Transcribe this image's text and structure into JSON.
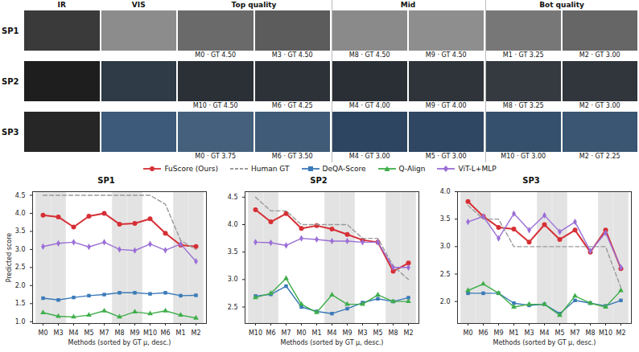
{
  "figure": {
    "column_heads": [
      "IR",
      "VIS",
      "Top quality",
      "Mid",
      "Bot quality"
    ],
    "rows": [
      {
        "label": "SP1",
        "captions": [
          "M0 · GT 4.50",
          "M3 · GT 4.50",
          "M8 · GT 4.50",
          "M9 · GT 4.50",
          "M1 · GT 3.25",
          "M2 · GT 3.00"
        ]
      },
      {
        "label": "SP2",
        "captions": [
          "M10 · GT 4.50",
          "M6 · GT 4.25",
          "M4 · GT 4.00",
          "M9 · GT 4.00",
          "M8 · GT 3.25",
          "M2 · GT 3.00"
        ]
      },
      {
        "label": "SP3",
        "captions": [
          "M0 · GT 3.75",
          "M6 · GT 3.50",
          "M4 · GT 3.00",
          "M5 · GT 3.00",
          "M10 · GT 3.00",
          "M2 · GT 2.25"
        ]
      }
    ]
  },
  "chart_data": [
    {
      "type": "line",
      "title": "SP1",
      "x_label": "Methods (sorted by GT μ, desc.)",
      "y_label": "Predicted score",
      "legend": "top",
      "grid": false,
      "categories": [
        "M0",
        "M3",
        "M4",
        "M5",
        "M7",
        "M8",
        "M9",
        "M10",
        "M6",
        "M1",
        "M2"
      ],
      "highlighted": [
        "M0",
        "M3",
        "M8",
        "M9",
        "M1",
        "M2"
      ],
      "ylim": [
        0.95,
        4.6
      ],
      "yticks": [
        {
          "value": 1,
          "label": "1.0"
        },
        1.5,
        {
          "value": 2,
          "label": "2.0"
        },
        2.5,
        {
          "value": 3,
          "label": "3.0"
        },
        3.5,
        {
          "value": 4,
          "label": "4.0"
        },
        4.5
      ],
      "series": [
        {
          "name": "FuScore (Ours)",
          "color": "#d62f35",
          "marker": "circle",
          "line_style": "solid",
          "values": [
            3.95,
            3.9,
            3.62,
            3.92,
            4.0,
            3.7,
            3.72,
            3.85,
            3.45,
            3.12,
            3.08
          ]
        },
        {
          "name": "Human GT",
          "color": "#9a9a9a",
          "marker": "none",
          "line_style": "dashed",
          "values": [
            4.5,
            4.5,
            4.5,
            4.5,
            4.5,
            4.5,
            4.5,
            4.5,
            4.25,
            3.25,
            3.0
          ]
        },
        {
          "name": "DeQA-Score",
          "color": "#3a7ab8",
          "marker": "square",
          "line_style": "solid",
          "values": [
            1.65,
            1.6,
            1.67,
            1.72,
            1.75,
            1.8,
            1.8,
            1.77,
            1.8,
            1.72,
            1.73
          ]
        },
        {
          "name": "Q-Align",
          "color": "#3fae49",
          "marker": "triangle",
          "line_style": "solid",
          "values": [
            1.25,
            1.15,
            1.13,
            1.18,
            1.3,
            1.13,
            1.27,
            1.22,
            1.3,
            1.18,
            1.1
          ]
        },
        {
          "name": "ViT-L+MLP",
          "color": "#9b6fd6",
          "marker": "diamond",
          "line_style": "solid",
          "values": [
            3.08,
            3.17,
            3.2,
            3.07,
            3.2,
            3.0,
            2.97,
            3.15,
            2.98,
            3.15,
            2.67
          ]
        }
      ]
    },
    {
      "type": "line",
      "title": "SP2",
      "x_label": "Methods (sorted by GT μ, desc.)",
      "legend": "top",
      "grid": false,
      "categories": [
        "M10",
        "M6",
        "M7",
        "M0",
        "M1",
        "M4",
        "M9",
        "M3",
        "M5",
        "M8",
        "M2"
      ],
      "highlighted": [
        "M10",
        "M6",
        "M4",
        "M9",
        "M8",
        "M2"
      ],
      "ylim": [
        2.2,
        4.6
      ],
      "yticks": [
        2.5,
        {
          "value": 3,
          "label": "3.0"
        },
        3.5,
        {
          "value": 4,
          "label": "4.0"
        },
        4.5
      ],
      "series": [
        {
          "name": "FuScore (Ours)",
          "color": "#d62f35",
          "marker": "circle",
          "line_style": "solid",
          "values": [
            4.27,
            4.05,
            4.2,
            3.93,
            3.98,
            3.92,
            3.82,
            3.72,
            3.68,
            3.15,
            3.3
          ]
        },
        {
          "name": "Human GT",
          "color": "#9a9a9a",
          "marker": "none",
          "line_style": "dashed",
          "values": [
            4.5,
            4.25,
            4.25,
            4.0,
            4.0,
            4.0,
            4.0,
            3.75,
            3.75,
            3.25,
            3.0
          ]
        },
        {
          "name": "DeQA-Score",
          "color": "#3a7ab8",
          "marker": "square",
          "line_style": "solid",
          "values": [
            2.7,
            2.73,
            2.88,
            2.5,
            2.42,
            2.38,
            2.47,
            2.58,
            2.65,
            2.6,
            2.67
          ]
        },
        {
          "name": "Q-Align",
          "color": "#3fae49",
          "marker": "triangle",
          "line_style": "solid",
          "values": [
            2.67,
            2.75,
            3.02,
            2.55,
            2.4,
            2.72,
            2.55,
            2.55,
            2.72,
            2.6,
            2.6
          ]
        },
        {
          "name": "ViT-L+MLP",
          "color": "#9b6fd6",
          "marker": "diamond",
          "line_style": "solid",
          "values": [
            3.68,
            3.67,
            3.62,
            3.75,
            3.73,
            3.7,
            3.7,
            3.68,
            3.68,
            3.22,
            3.22
          ]
        }
      ]
    },
    {
      "type": "line",
      "title": "SP3",
      "x_label": "Methods (sorted by GT μ, desc.)",
      "legend": "top",
      "grid": false,
      "categories": [
        "M0",
        "M6",
        "M9",
        "M1",
        "M3",
        "M4",
        "M5",
        "M7",
        "M8",
        "M10",
        "M2"
      ],
      "highlighted": [
        "M0",
        "M6",
        "M4",
        "M5",
        "M10",
        "M2"
      ],
      "ylim": [
        1.6,
        4.0
      ],
      "yticks": [
        {
          "value": 2,
          "label": "2.0"
        },
        2.5,
        {
          "value": 3,
          "label": "3.0"
        },
        3.5,
        {
          "value": 4,
          "label": "4.0"
        }
      ],
      "series": [
        {
          "name": "FuScore (Ours)",
          "color": "#d62f35",
          "marker": "circle",
          "line_style": "solid",
          "values": [
            3.82,
            3.55,
            3.35,
            3.32,
            3.08,
            3.4,
            3.13,
            3.3,
            2.9,
            3.3,
            2.6
          ]
        },
        {
          "name": "Human GT",
          "color": "#9a9a9a",
          "marker": "none",
          "line_style": "dashed",
          "values": [
            3.75,
            3.5,
            3.5,
            3.0,
            3.0,
            3.0,
            3.0,
            3.0,
            3.0,
            3.0,
            2.25
          ]
        },
        {
          "name": "DeQA-Score",
          "color": "#3a7ab8",
          "marker": "square",
          "line_style": "solid",
          "values": [
            2.15,
            2.15,
            2.15,
            1.97,
            1.93,
            1.95,
            1.78,
            2.02,
            1.97,
            1.92,
            2.02
          ]
        },
        {
          "name": "Q-Align",
          "color": "#3fae49",
          "marker": "triangle",
          "line_style": "solid",
          "values": [
            2.2,
            2.32,
            2.15,
            1.9,
            1.95,
            1.95,
            1.75,
            2.1,
            1.97,
            1.9,
            2.2
          ]
        },
        {
          "name": "ViT-L+MLP",
          "color": "#9b6fd6",
          "marker": "diamond",
          "line_style": "solid",
          "values": [
            3.45,
            3.55,
            3.15,
            3.6,
            3.3,
            3.57,
            3.27,
            3.45,
            2.92,
            3.25,
            2.62
          ]
        }
      ]
    }
  ]
}
